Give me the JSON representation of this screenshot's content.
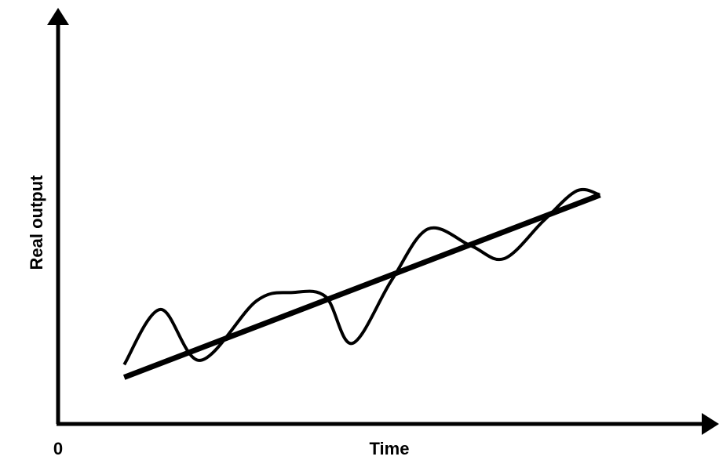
{
  "chart_data": {
    "type": "line",
    "title": "",
    "xlabel": "Time",
    "ylabel": "Real output",
    "origin_label": "0",
    "xlim": [
      0,
      100
    ],
    "ylim": [
      0,
      100
    ],
    "grid": false,
    "legend": "none",
    "series": [
      {
        "role": "trend",
        "style": "thick",
        "color": "#000000",
        "x": [
          10,
          82
        ],
        "y": [
          11,
          54
        ]
      },
      {
        "role": "actual",
        "style": "thin",
        "color": "#000000",
        "x": [
          10,
          15.5,
          21.5,
          30,
          35.5,
          40.5,
          44.5,
          50.5,
          56,
          62.5,
          67.5,
          73.5,
          78.5,
          82
        ],
        "y": [
          14,
          27,
          15,
          29,
          31,
          30,
          19,
          34,
          46,
          42,
          39,
          48,
          55,
          54
        ]
      }
    ]
  }
}
